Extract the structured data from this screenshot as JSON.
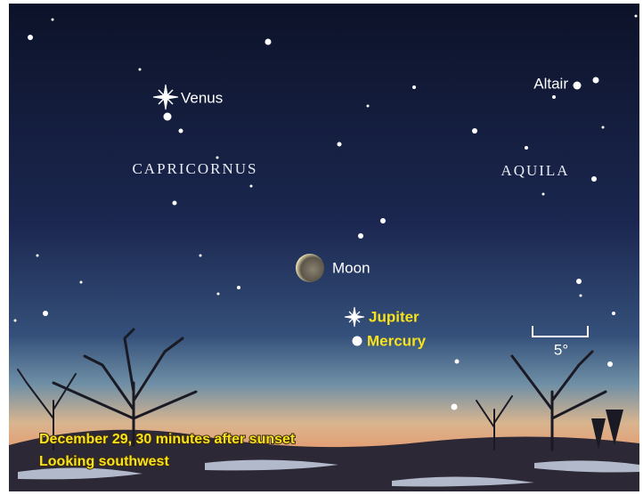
{
  "objects": [
    "Venus",
    "Altair",
    "Moon",
    "Jupiter",
    "Mercury"
  ],
  "constellations": [
    "CAPRICORNUS",
    "AQUILA"
  ],
  "scale": "5°",
  "caption": [
    "December 29, 30 minutes after sunset",
    "Looking southwest"
  ]
}
